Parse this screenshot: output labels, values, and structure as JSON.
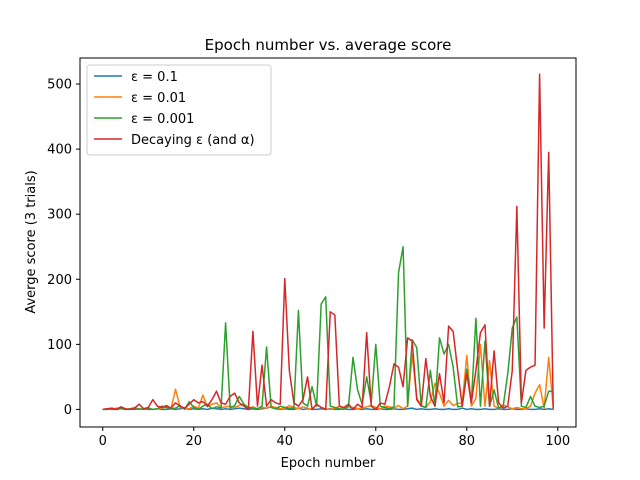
{
  "chart_data": {
    "type": "line",
    "title": "Epoch number vs. average score",
    "xlabel": "Epoch number",
    "ylabel": "Averge score (3 trials)",
    "xlim": [
      -5,
      104
    ],
    "ylim": [
      -27,
      540
    ],
    "xticks": [
      0,
      20,
      40,
      60,
      80,
      100
    ],
    "yticks": [
      0,
      100,
      200,
      300,
      400,
      500
    ],
    "grid": false,
    "legend_position": "top-left",
    "x": [
      0,
      1,
      2,
      3,
      4,
      5,
      6,
      7,
      8,
      9,
      10,
      11,
      12,
      13,
      14,
      15,
      16,
      17,
      18,
      19,
      20,
      21,
      22,
      23,
      24,
      25,
      26,
      27,
      28,
      29,
      30,
      31,
      32,
      33,
      34,
      35,
      36,
      37,
      38,
      39,
      40,
      41,
      42,
      43,
      44,
      45,
      46,
      47,
      48,
      49,
      50,
      51,
      52,
      53,
      54,
      55,
      56,
      57,
      58,
      59,
      60,
      61,
      62,
      63,
      64,
      65,
      66,
      67,
      68,
      69,
      70,
      71,
      72,
      73,
      74,
      75,
      76,
      77,
      78,
      79,
      80,
      81,
      82,
      83,
      84,
      85,
      86,
      87,
      88,
      89,
      90,
      91,
      92,
      93,
      94,
      95,
      96,
      97,
      98,
      99
    ],
    "series": [
      {
        "name": "ε = 0.1",
        "color": "#1f77b4",
        "values": [
          0,
          0,
          1,
          0,
          1,
          0,
          0,
          1,
          0,
          1,
          0,
          0,
          1,
          0,
          0,
          1,
          0,
          1,
          2,
          0,
          1,
          0,
          1,
          0,
          2,
          1,
          0,
          1,
          0,
          1,
          2,
          1,
          0,
          1,
          0,
          1,
          2,
          4,
          1,
          0,
          1,
          0,
          0,
          2,
          0,
          1,
          0,
          0,
          1,
          0,
          1,
          0,
          0,
          1,
          0,
          0,
          1,
          0,
          1,
          0,
          0,
          1,
          0,
          0,
          1,
          0,
          0,
          1,
          2,
          0,
          1,
          0,
          0,
          1,
          0,
          0,
          1,
          0,
          0,
          2,
          0,
          1,
          0,
          0,
          1,
          0,
          0,
          1,
          0,
          0,
          1,
          0,
          0,
          1,
          0,
          0,
          1,
          0,
          1,
          0
        ]
      },
      {
        "name": "ε = 0.01",
        "color": "#ff7f0e",
        "values": [
          0,
          1,
          0,
          2,
          1,
          0,
          1,
          3,
          0,
          1,
          2,
          0,
          1,
          2,
          4,
          1,
          31,
          3,
          2,
          1,
          5,
          2,
          22,
          4,
          8,
          10,
          3,
          4,
          5,
          3,
          6,
          8,
          2,
          4,
          1,
          3,
          2,
          5,
          3,
          1,
          2,
          6,
          3,
          1,
          4,
          2,
          0,
          8,
          3,
          1,
          0,
          2,
          5,
          1,
          4,
          3,
          1,
          2,
          4,
          6,
          3,
          1,
          5,
          4,
          2,
          6,
          1,
          5,
          85,
          18,
          6,
          3,
          12,
          40,
          25,
          5,
          14,
          6,
          9,
          10,
          83,
          5,
          17,
          100,
          5,
          75,
          5,
          2,
          7,
          4,
          1,
          3,
          1,
          1,
          5,
          25,
          38,
          2,
          80,
          3
        ]
      },
      {
        "name": "ε = 0.001",
        "color": "#2ca02c",
        "values": [
          0,
          1,
          0,
          0,
          2,
          0,
          1,
          0,
          1,
          0,
          2,
          0,
          1,
          5,
          3,
          1,
          2,
          6,
          0,
          12,
          3,
          0,
          5,
          8,
          1,
          4,
          2,
          133,
          2,
          6,
          20,
          8,
          3,
          2,
          1,
          5,
          96,
          3,
          1,
          5,
          3,
          2,
          2,
          152,
          10,
          5,
          35,
          5,
          162,
          173,
          5,
          3,
          1,
          0,
          5,
          80,
          30,
          8,
          50,
          10,
          100,
          5,
          3,
          1,
          4,
          210,
          250,
          5,
          107,
          95,
          5,
          3,
          60,
          5,
          110,
          85,
          100,
          65,
          4,
          5,
          62,
          10,
          140,
          5,
          105,
          5,
          30,
          2,
          5,
          55,
          125,
          142,
          5,
          3,
          20,
          5,
          3,
          5,
          28,
          28
        ]
      },
      {
        "name": "Decaying ε (and α)",
        "color": "#d62728",
        "values": [
          0,
          1,
          2,
          0,
          4,
          1,
          0,
          2,
          8,
          1,
          3,
          15,
          5,
          3,
          6,
          2,
          10,
          5,
          2,
          8,
          15,
          10,
          12,
          5,
          15,
          28,
          10,
          8,
          20,
          25,
          10,
          5,
          0,
          120,
          5,
          68,
          5,
          15,
          10,
          8,
          201,
          60,
          10,
          5,
          15,
          50,
          0,
          8,
          3,
          0,
          150,
          145,
          5,
          3,
          8,
          0,
          8,
          3,
          118,
          5,
          0,
          10,
          8,
          35,
          70,
          65,
          35,
          110,
          105,
          15,
          5,
          78,
          20,
          5,
          55,
          10,
          128,
          120,
          60,
          5,
          55,
          10,
          60,
          118,
          130,
          5,
          90,
          10,
          2,
          5,
          60,
          312,
          10,
          60,
          65,
          68,
          515,
          125,
          395,
          0
        ]
      }
    ]
  }
}
